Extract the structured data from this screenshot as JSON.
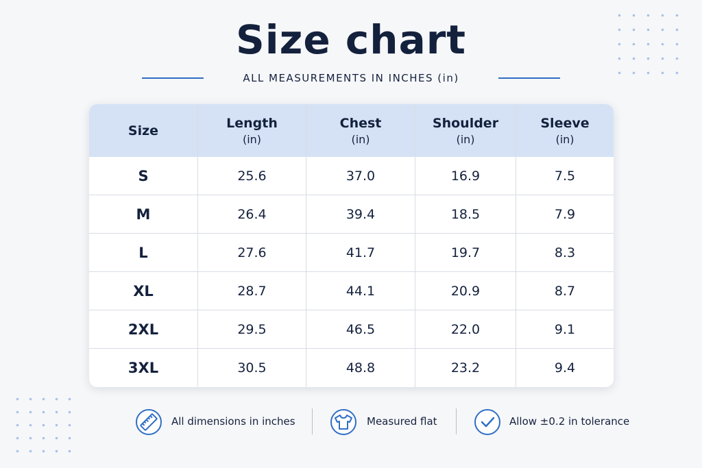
{
  "header": {
    "title": "Size chart",
    "subtitle": "ALL MEASUREMENTS IN INCHES (in)"
  },
  "table": {
    "columns": [
      {
        "label": "Size"
      },
      {
        "label": "Length",
        "unit": "(in)"
      },
      {
        "label": "Chest",
        "unit": "(in)"
      },
      {
        "label": "Shoulder",
        "unit": "(in)"
      },
      {
        "label": "Sleeve",
        "unit": "(in)"
      }
    ],
    "rows": [
      [
        "S",
        "25.6",
        "37.0",
        "16.9",
        "7.5"
      ],
      [
        "M",
        "26.4",
        "39.4",
        "18.5",
        "7.9"
      ],
      [
        "L",
        "27.6",
        "41.7",
        "19.7",
        "8.3"
      ],
      [
        "XL",
        "28.7",
        "44.1",
        "20.9",
        "8.7"
      ],
      [
        "2XL",
        "29.5",
        "46.5",
        "22.0",
        "9.1"
      ],
      [
        "3XL",
        "30.5",
        "48.8",
        "23.2",
        "9.4"
      ]
    ]
  },
  "footer": {
    "notes": [
      "All dimensions in inches",
      "Measured flat",
      "Allow ±0.2 in tolerance"
    ]
  }
}
